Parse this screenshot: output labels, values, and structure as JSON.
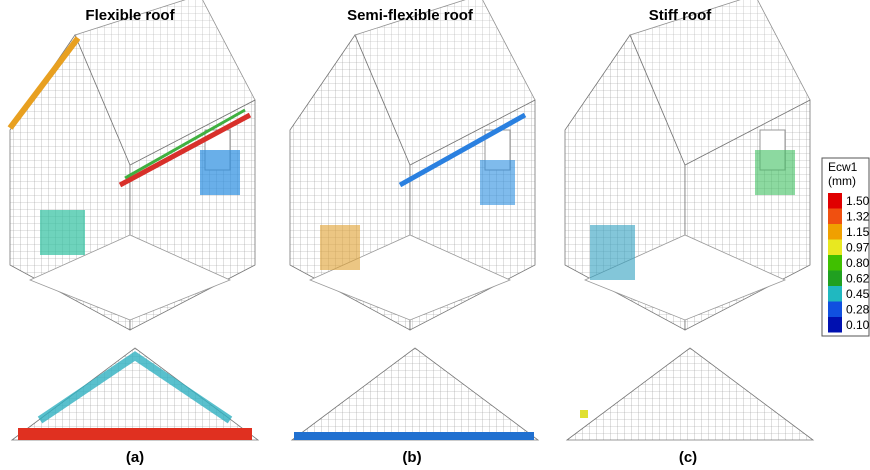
{
  "panels": [
    {
      "title": "Flexible roof",
      "label": "(a)"
    },
    {
      "title": "Semi-flexible roof",
      "label": "(b)"
    },
    {
      "title": "Stiff roof",
      "label": "(c)"
    }
  ],
  "legend": {
    "title": "Ecw1",
    "unit": "(mm)",
    "values": [
      "1.50",
      "1.32",
      "1.15",
      "0.97",
      "0.80",
      "0.62",
      "0.45",
      "0.28",
      "0.10"
    ]
  }
}
